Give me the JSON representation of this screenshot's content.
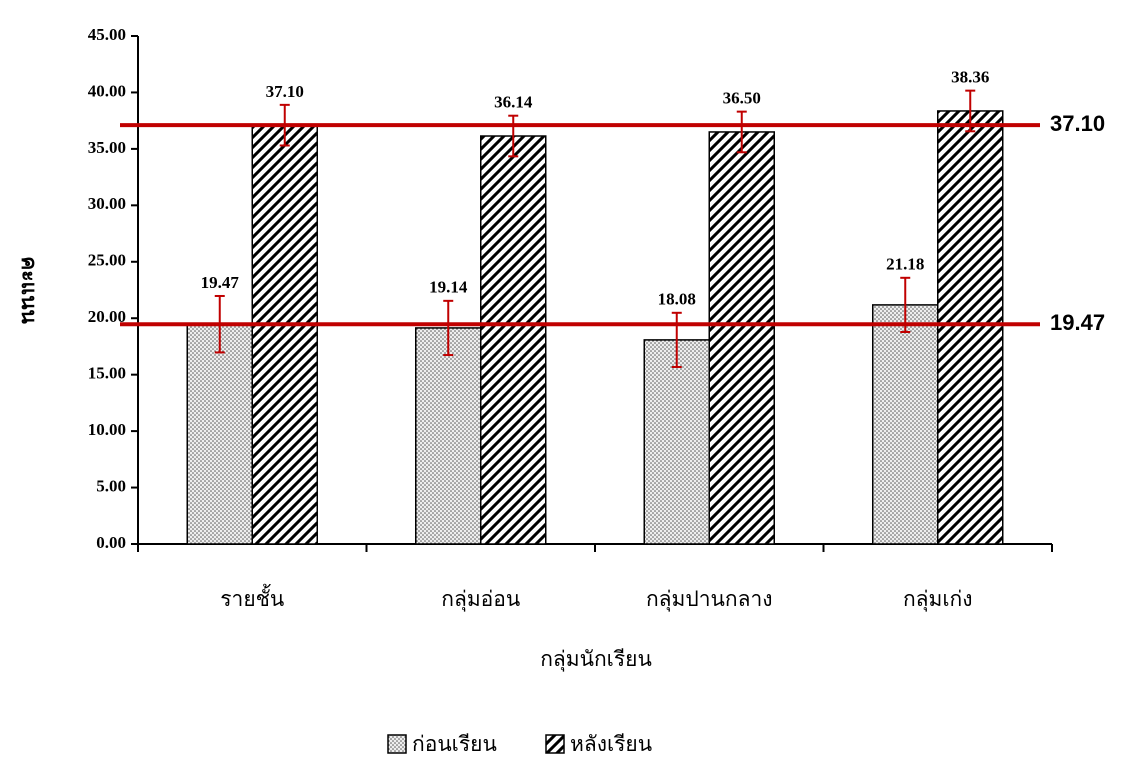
{
  "chart_data": {
    "type": "bar",
    "x_label": "กลุ่มนักเรียน",
    "y_label": "คะแนน",
    "categories": [
      "รายชั้น",
      "กลุ่มอ่อน",
      "กลุ่มปานกลาง",
      "กลุ่มเก่ง"
    ],
    "series": [
      {
        "name": "ก่อนเรียน",
        "pattern": "dots",
        "color": "#000000",
        "values": [
          19.47,
          19.14,
          18.08,
          21.18
        ],
        "value_labels": [
          "19.47",
          "19.14",
          "18.08",
          "21.18"
        ],
        "errors": [
          2.5,
          2.4,
          2.4,
          2.4
        ]
      },
      {
        "name": "หลังเรียน",
        "pattern": "hatch",
        "color": "#000000",
        "values": [
          37.1,
          36.14,
          36.5,
          38.36
        ],
        "value_labels": [
          "37.10",
          "36.14",
          "36.50",
          "38.36"
        ],
        "errors": [
          1.8,
          1.8,
          1.8,
          1.8
        ]
      }
    ],
    "error_color": "#c00000",
    "reference_lines": [
      {
        "value": 37.1,
        "label": "37.10"
      },
      {
        "value": 19.47,
        "label": "19.47"
      }
    ],
    "reference_color": "#c00000",
    "ylim": [
      0,
      45
    ],
    "yticks": [
      {
        "value": 0,
        "label": "0.00"
      },
      {
        "value": 5,
        "label": "5.00"
      },
      {
        "value": 10,
        "label": "10.00"
      },
      {
        "value": 15,
        "label": "15.00"
      },
      {
        "value": 20,
        "label": "20.00"
      },
      {
        "value": 25,
        "label": "25.00"
      },
      {
        "value": 30,
        "label": "30.00"
      },
      {
        "value": 35,
        "label": "35.00"
      },
      {
        "value": 40,
        "label": "40.00"
      },
      {
        "value": 45,
        "label": "45.00"
      }
    ],
    "grid": false,
    "legend": "bottom"
  }
}
